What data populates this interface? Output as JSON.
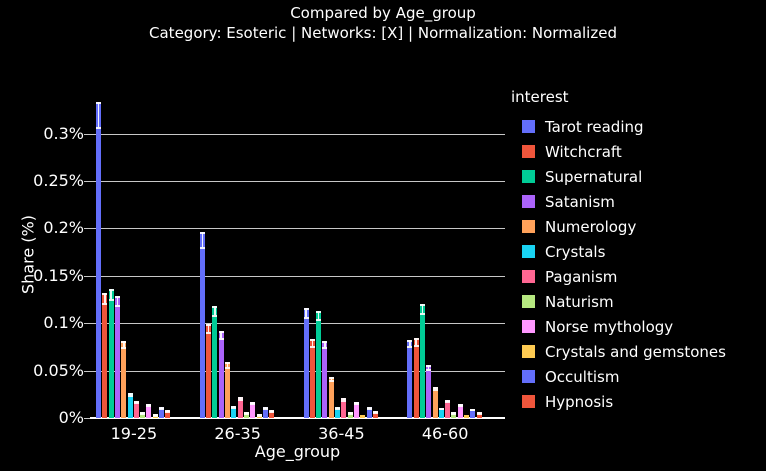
{
  "header": {
    "title": "Compared by Age_group",
    "subtitle": "Category: Esoteric | Networks: [X] | Normalization: Normalized"
  },
  "colors": {
    "background": "#000000",
    "text": "#ffffff",
    "gridline": "#c7c7c7",
    "axis_line": "#ffffff",
    "error_bar": "#ffffff"
  },
  "chart_data": {
    "type": "bar",
    "title": "Compared by Age_group",
    "subtitle": "Category: Esoteric | Networks: [X] | Normalization: Normalized",
    "xlabel": "Age_group",
    "ylabel": "Share (%)",
    "legend_title": "interest",
    "legend_position": "right",
    "grid": true,
    "error_bars": true,
    "ylim": [
      0,
      0.348
    ],
    "yticks": {
      "values": [
        0,
        0.05,
        0.1,
        0.15,
        0.2,
        0.25,
        0.3
      ],
      "labels": [
        "0%",
        "0.05%",
        "0.1%",
        "0.15%",
        "0.2%",
        "0.25%",
        "0.3%"
      ]
    },
    "categories": [
      "19-25",
      "26-35",
      "36-45",
      "46-60"
    ],
    "series": [
      {
        "name": "Tarot reading",
        "color": "#636EFA",
        "values": [
          0.333,
          0.196,
          0.116,
          0.082
        ]
      },
      {
        "name": "Witchcraft",
        "color": "#EF553B",
        "values": [
          0.132,
          0.099,
          0.083,
          0.084
        ]
      },
      {
        "name": "Supernatural",
        "color": "#00CC96",
        "values": [
          0.136,
          0.118,
          0.113,
          0.12
        ]
      },
      {
        "name": "Satanism",
        "color": "#AB63FA",
        "values": [
          0.129,
          0.092,
          0.081,
          0.056
        ]
      },
      {
        "name": "Numerology",
        "color": "#FFA15A",
        "values": [
          0.081,
          0.059,
          0.043,
          0.033
        ]
      },
      {
        "name": "Crystals",
        "color": "#19D3F3",
        "values": [
          0.026,
          0.013,
          0.012,
          0.011
        ]
      },
      {
        "name": "Paganism",
        "color": "#FF6692",
        "values": [
          0.018,
          0.022,
          0.021,
          0.019
        ]
      },
      {
        "name": "Naturism",
        "color": "#B6E880",
        "values": [
          0.006,
          0.006,
          0.006,
          0.006
        ]
      },
      {
        "name": "Norse mythology",
        "color": "#FF97FF",
        "values": [
          0.015,
          0.017,
          0.017,
          0.015
        ]
      },
      {
        "name": "Crystals and gemstones",
        "color": "#FECB52",
        "values": [
          0.004,
          0.004,
          0.003,
          0.003
        ]
      },
      {
        "name": "Occultism",
        "color": "#636EFA",
        "values": [
          0.012,
          0.012,
          0.012,
          0.01
        ]
      },
      {
        "name": "Hypnosis",
        "color": "#EF553B",
        "values": [
          0.008,
          0.008,
          0.007,
          0.006
        ]
      }
    ]
  }
}
